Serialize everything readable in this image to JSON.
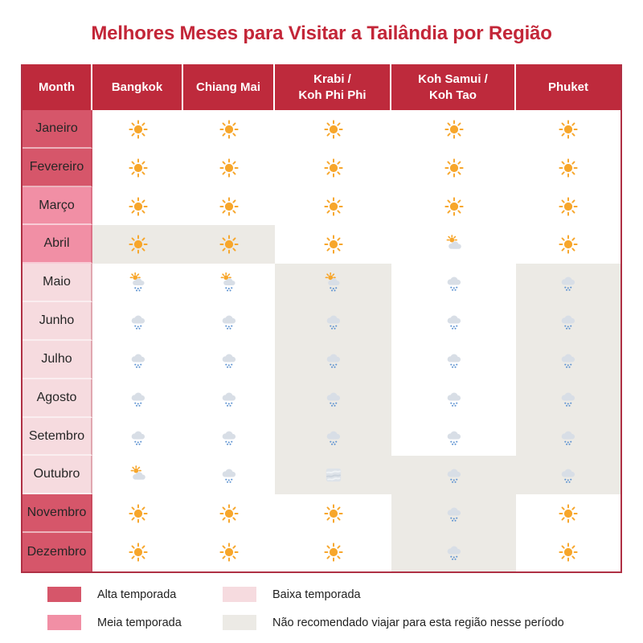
{
  "title": "Melhores Meses para Visitar a Tailândia por Região",
  "chart_data": {
    "type": "table",
    "title": "Melhores Meses para Visitar a Tailândia por Região",
    "columns": [
      "Month",
      "Bangkok",
      "Chiang Mai",
      "Krabi /\nKoh Phi Phi",
      "Koh Samui /\nKoh Tao",
      "Phuket"
    ],
    "rows": [
      {
        "month": "Janeiro",
        "season": "alta",
        "cells": [
          {
            "icon": "sun",
            "not_recommended": false
          },
          {
            "icon": "sun",
            "not_recommended": false
          },
          {
            "icon": "sun",
            "not_recommended": false
          },
          {
            "icon": "sun",
            "not_recommended": false
          },
          {
            "icon": "sun",
            "not_recommended": false
          }
        ]
      },
      {
        "month": "Fevereiro",
        "season": "alta",
        "cells": [
          {
            "icon": "sun",
            "not_recommended": false
          },
          {
            "icon": "sun",
            "not_recommended": false
          },
          {
            "icon": "sun",
            "not_recommended": false
          },
          {
            "icon": "sun",
            "not_recommended": false
          },
          {
            "icon": "sun",
            "not_recommended": false
          }
        ]
      },
      {
        "month": "Março",
        "season": "meia",
        "cells": [
          {
            "icon": "sun",
            "not_recommended": false
          },
          {
            "icon": "sun",
            "not_recommended": false
          },
          {
            "icon": "sun",
            "not_recommended": false
          },
          {
            "icon": "sun",
            "not_recommended": false
          },
          {
            "icon": "sun",
            "not_recommended": false
          }
        ]
      },
      {
        "month": "Abril",
        "season": "meia",
        "cells": [
          {
            "icon": "sun",
            "not_recommended": true
          },
          {
            "icon": "sun",
            "not_recommended": true
          },
          {
            "icon": "sun",
            "not_recommended": false
          },
          {
            "icon": "sun-behind-cloud",
            "not_recommended": false
          },
          {
            "icon": "sun",
            "not_recommended": false
          }
        ]
      },
      {
        "month": "Maio",
        "season": "baixa",
        "cells": [
          {
            "icon": "sun-behind-rain-cloud",
            "not_recommended": false
          },
          {
            "icon": "sun-behind-rain-cloud",
            "not_recommended": false
          },
          {
            "icon": "sun-behind-rain-cloud",
            "not_recommended": true
          },
          {
            "icon": "cloud-with-rain",
            "not_recommended": false
          },
          {
            "icon": "cloud-with-rain",
            "not_recommended": true
          }
        ]
      },
      {
        "month": "Junho",
        "season": "baixa",
        "cells": [
          {
            "icon": "cloud-with-rain",
            "not_recommended": false
          },
          {
            "icon": "cloud-with-rain",
            "not_recommended": false
          },
          {
            "icon": "cloud-with-rain",
            "not_recommended": true
          },
          {
            "icon": "cloud-with-rain",
            "not_recommended": false
          },
          {
            "icon": "cloud-with-rain",
            "not_recommended": true
          }
        ]
      },
      {
        "month": "Julho",
        "season": "baixa",
        "cells": [
          {
            "icon": "cloud-with-rain",
            "not_recommended": false
          },
          {
            "icon": "cloud-with-rain",
            "not_recommended": false
          },
          {
            "icon": "cloud-with-rain",
            "not_recommended": true
          },
          {
            "icon": "cloud-with-rain",
            "not_recommended": false
          },
          {
            "icon": "cloud-with-rain",
            "not_recommended": true
          }
        ]
      },
      {
        "month": "Agosto",
        "season": "baixa",
        "cells": [
          {
            "icon": "cloud-with-rain",
            "not_recommended": false
          },
          {
            "icon": "cloud-with-rain",
            "not_recommended": false
          },
          {
            "icon": "cloud-with-rain",
            "not_recommended": true
          },
          {
            "icon": "cloud-with-rain",
            "not_recommended": false
          },
          {
            "icon": "cloud-with-rain",
            "not_recommended": true
          }
        ]
      },
      {
        "month": "Setembro",
        "season": "baixa",
        "cells": [
          {
            "icon": "cloud-with-rain",
            "not_recommended": false
          },
          {
            "icon": "cloud-with-rain",
            "not_recommended": false
          },
          {
            "icon": "cloud-with-rain",
            "not_recommended": true
          },
          {
            "icon": "cloud-with-rain",
            "not_recommended": false
          },
          {
            "icon": "cloud-with-rain",
            "not_recommended": true
          }
        ]
      },
      {
        "month": "Outubro",
        "season": "baixa",
        "cells": [
          {
            "icon": "sun-behind-cloud",
            "not_recommended": false
          },
          {
            "icon": "cloud-with-rain",
            "not_recommended": false
          },
          {
            "icon": "fog",
            "not_recommended": true
          },
          {
            "icon": "cloud-with-rain",
            "not_recommended": true
          },
          {
            "icon": "cloud-with-rain",
            "not_recommended": true
          }
        ]
      },
      {
        "month": "Novembro",
        "season": "alta",
        "cells": [
          {
            "icon": "sun",
            "not_recommended": false
          },
          {
            "icon": "sun",
            "not_recommended": false
          },
          {
            "icon": "sun",
            "not_recommended": false
          },
          {
            "icon": "cloud-with-rain",
            "not_recommended": true
          },
          {
            "icon": "sun",
            "not_recommended": false
          }
        ]
      },
      {
        "month": "Dezembro",
        "season": "alta",
        "cells": [
          {
            "icon": "sun",
            "not_recommended": false
          },
          {
            "icon": "sun",
            "not_recommended": false
          },
          {
            "icon": "sun",
            "not_recommended": false
          },
          {
            "icon": "cloud-with-rain",
            "not_recommended": true
          },
          {
            "icon": "sun",
            "not_recommended": false
          }
        ]
      }
    ]
  },
  "legend": {
    "items": [
      {
        "label": "Alta temporada",
        "season": "alta"
      },
      {
        "label": "Meia temporada",
        "season": "meia"
      },
      {
        "label": "Baixa temporada",
        "season": "baixa"
      },
      {
        "label": "Não recomendado viajar para esta região nesse período",
        "season": "nao_recomendado"
      }
    ]
  },
  "colors": {
    "title": "#C32638",
    "header_bg": "#BE2A3C",
    "header_text": "#FFFFFF",
    "alta": "#D6566A",
    "meia": "#F18FA5",
    "baixa": "#F6DBDF",
    "nao_recomendado": "#ECEAE5",
    "table_border": "#AF3044",
    "month_text": "#262626",
    "sun": "#F7A62B",
    "cloud": "#D8DEE6",
    "rain_drop": "#5E93D1"
  }
}
